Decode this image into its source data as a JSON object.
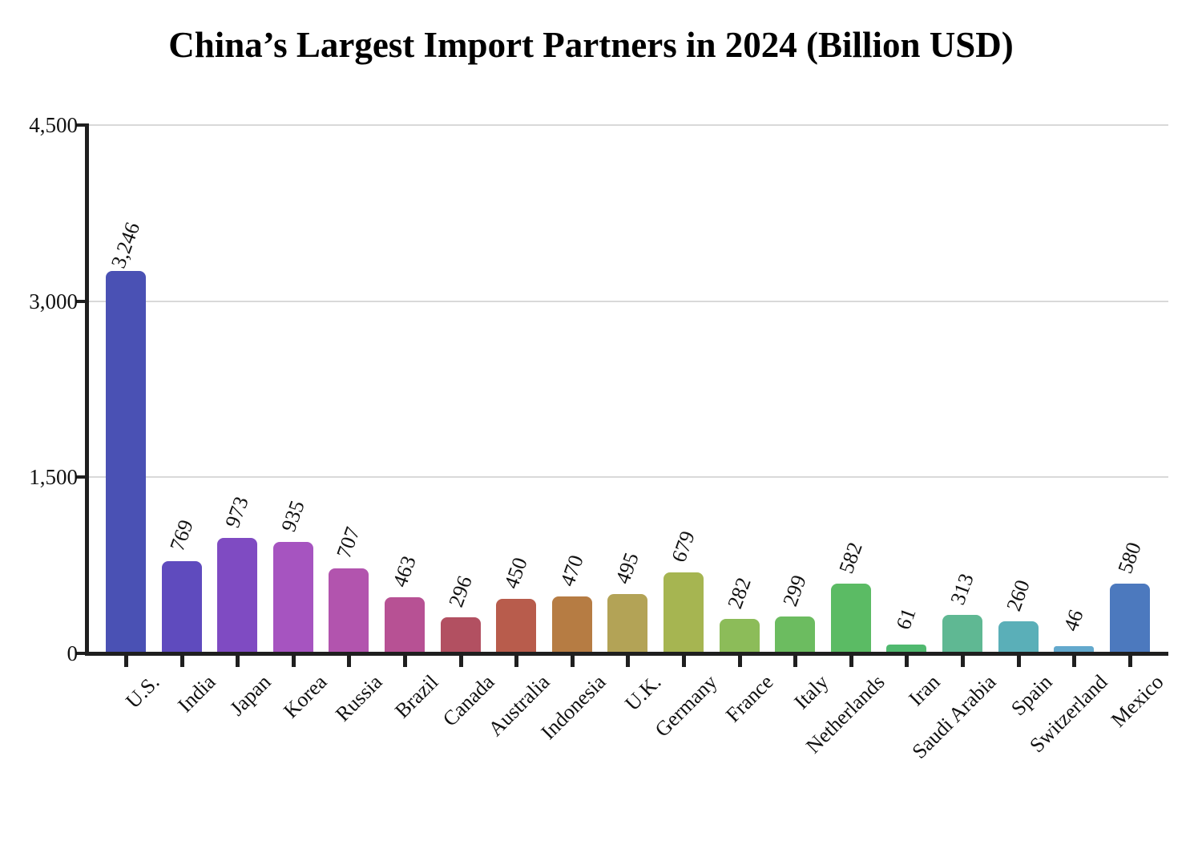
{
  "page": {
    "background": "#ffffff"
  },
  "chart_data": {
    "type": "bar",
    "title": "China’s Largest Import Partners in 2024 (Billion USD)",
    "categories": [
      "U.S.",
      "India",
      "Japan",
      "Korea",
      "Russia",
      "Brazil",
      "Canada",
      "Australia",
      "Indonesia",
      "U.K.",
      "Germany",
      "France",
      "Italy",
      "Netherlands",
      "Iran",
      "Saudi Arabia",
      "Spain",
      "Switzerland",
      "Mexico"
    ],
    "values": [
      3246,
      769,
      973,
      935,
      707,
      463,
      296,
      450,
      470,
      495,
      679,
      282,
      299,
      582,
      61,
      313,
      260,
      46,
      580
    ],
    "bar_colors": [
      "#4A51B4",
      "#5F4BBE",
      "#7F4BC2",
      "#A654C0",
      "#B254AE",
      "#B75194",
      "#B25061",
      "#B85C4C",
      "#B67C43",
      "#B3A356",
      "#A6B551",
      "#8CBC59",
      "#6CBC60",
      "#5BBB64",
      "#50B96F",
      "#5FB893",
      "#5AAFB8",
      "#63A9CD",
      "#4C79BE"
    ],
    "xlabel": "",
    "ylabel": "",
    "ylim": [
      0,
      4500
    ],
    "yticks": [
      0,
      1500,
      3000,
      4500
    ],
    "ytick_labels": [
      "0",
      "1,500",
      "3,000",
      "4,500"
    ],
    "grid": "horizontal",
    "legend": "none",
    "value_label_rotation_deg": -70,
    "category_label_rotation_deg": -45,
    "colors": {
      "axis": "#1f1f1f",
      "gridline": "#d9d9d9",
      "text": "#111111"
    }
  }
}
